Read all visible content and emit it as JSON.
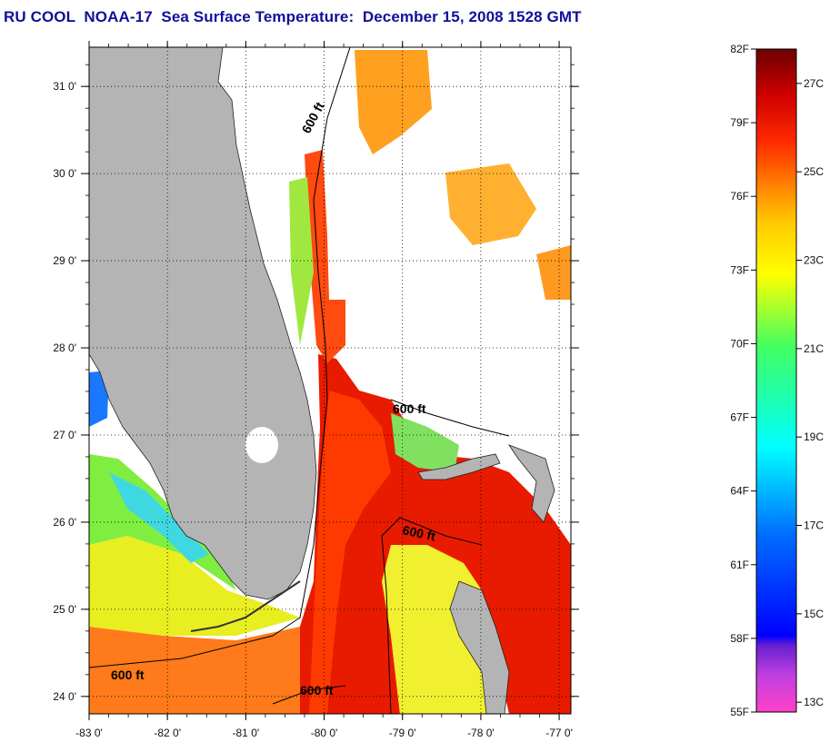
{
  "title": "RU COOL  NOAA-17  Sea Surface Temperature:  December 15, 2008 1528 GMT",
  "map": {
    "lon_range": [
      -83,
      -76.85
    ],
    "lat_range": [
      23.8,
      31.45
    ],
    "lon_ticks": [
      {
        "value": -83,
        "label": "-83 0'"
      },
      {
        "value": -82,
        "label": "-82 0'"
      },
      {
        "value": -81,
        "label": "-81 0'"
      },
      {
        "value": -80,
        "label": "-80 0'"
      },
      {
        "value": -79,
        "label": "-79 0'"
      },
      {
        "value": -78,
        "label": "-78 0'"
      },
      {
        "value": -77,
        "label": "-77 0'"
      }
    ],
    "lat_ticks": [
      {
        "value": 31,
        "label": "31 0'"
      },
      {
        "value": 30,
        "label": "30 0'"
      },
      {
        "value": 29,
        "label": "29 0'"
      },
      {
        "value": 28,
        "label": "28 0'"
      },
      {
        "value": 27,
        "label": "27 0'"
      },
      {
        "value": 26,
        "label": "26 0'"
      },
      {
        "value": 25,
        "label": "25 0'"
      },
      {
        "value": 24,
        "label": "24 0'"
      }
    ],
    "grid": "dotted",
    "isobath_label": "600 ft",
    "land_color": "#b4b4b4",
    "cloud_color": "#ffffff"
  },
  "colorbar": {
    "fahrenheit": [
      {
        "value": 82,
        "label": "82F"
      },
      {
        "value": 79,
        "label": "79F"
      },
      {
        "value": 76,
        "label": "76F"
      },
      {
        "value": 73,
        "label": "73F"
      },
      {
        "value": 70,
        "label": "70F"
      },
      {
        "value": 67,
        "label": "67F"
      },
      {
        "value": 64,
        "label": "64F"
      },
      {
        "value": 61,
        "label": "61F"
      },
      {
        "value": 58,
        "label": "58F"
      },
      {
        "value": 55,
        "label": "55F"
      }
    ],
    "celsius": [
      {
        "value": 27,
        "label": "27C"
      },
      {
        "value": 25,
        "label": "25C"
      },
      {
        "value": 23,
        "label": "23C"
      },
      {
        "value": 21,
        "label": "21C"
      },
      {
        "value": 19,
        "label": "19C"
      },
      {
        "value": 17,
        "label": "17C"
      },
      {
        "value": 15,
        "label": "15C"
      },
      {
        "value": 13,
        "label": "13C"
      }
    ],
    "colors": [
      "#6e0000",
      "#b80000",
      "#ff1a00",
      "#ff6a00",
      "#ffa800",
      "#ffff00",
      "#40ff60",
      "#00ffff",
      "#0070ff",
      "#0000ff",
      "#8800cc",
      "#ff40c8"
    ]
  }
}
